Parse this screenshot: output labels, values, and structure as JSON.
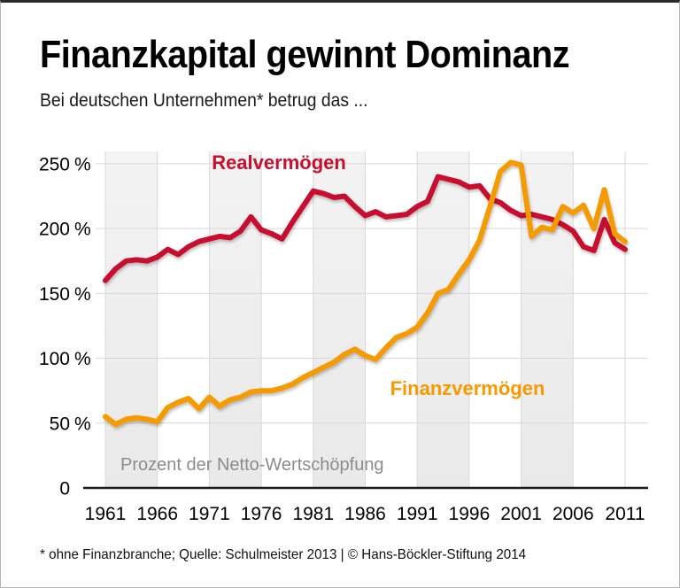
{
  "header": {
    "title": "Finanzkapital gewinnt Dominanz",
    "subtitle": "Bei deutschen Unternehmen* betrug das ..."
  },
  "footer": {
    "note": "* ohne Finanzbranche; Quelle: Schulmeister 2013 | © Hans-Böckler-Stiftung 2014"
  },
  "chart_data": {
    "type": "line",
    "unit_label": "Prozent der Netto-Wertschöpfung",
    "x": [
      1961,
      1962,
      1963,
      1964,
      1965,
      1966,
      1967,
      1968,
      1969,
      1970,
      1971,
      1972,
      1973,
      1974,
      1975,
      1976,
      1977,
      1978,
      1979,
      1980,
      1981,
      1982,
      1983,
      1984,
      1985,
      1986,
      1987,
      1988,
      1989,
      1990,
      1991,
      1992,
      1993,
      1994,
      1995,
      1996,
      1997,
      1998,
      1999,
      2000,
      2001,
      2002,
      2003,
      2004,
      2005,
      2006,
      2007,
      2008,
      2009,
      2010,
      2011
    ],
    "series": [
      {
        "name": "Realvermögen",
        "color": "#c8102e",
        "values": [
          160,
          169,
          175,
          176,
          175,
          178,
          184,
          180,
          186,
          190,
          192,
          194,
          193,
          198,
          209,
          199,
          196,
          192,
          205,
          217,
          229,
          227,
          224,
          225,
          217,
          210,
          213,
          209,
          210,
          211,
          217,
          221,
          240,
          238,
          236,
          232,
          233,
          223,
          220,
          214,
          210,
          211,
          209,
          207,
          203,
          198,
          186,
          183,
          207,
          189,
          184
        ]
      },
      {
        "name": "Finanzvermögen",
        "color": "#f59a00",
        "values": [
          55,
          49,
          53,
          54,
          53,
          51,
          62,
          66,
          69,
          61,
          70,
          63,
          68,
          70,
          74,
          75,
          75,
          77,
          80,
          85,
          89,
          93,
          97,
          103,
          107,
          102,
          99,
          108,
          116,
          119,
          124,
          135,
          150,
          153,
          165,
          176,
          191,
          217,
          244,
          251,
          249,
          194,
          201,
          199,
          217,
          212,
          218,
          200,
          230,
          196,
          190
        ]
      }
    ],
    "x_ticks": [
      1961,
      1966,
      1971,
      1976,
      1981,
      1986,
      1991,
      1996,
      2001,
      2006,
      2011
    ],
    "y_ticks": [
      {
        "value": 0,
        "label": "0"
      },
      {
        "value": 50,
        "label": "50 %"
      },
      {
        "value": 100,
        "label": "100 %"
      },
      {
        "value": 150,
        "label": "150 %"
      },
      {
        "value": 200,
        "label": "200 %"
      },
      {
        "value": 250,
        "label": "250 %"
      }
    ],
    "xlim": [
      1961,
      2011
    ],
    "ylim": [
      0,
      260
    ],
    "grid": true,
    "legend_position": "inline-labels",
    "stripe_bands": [
      [
        1961,
        1966
      ],
      [
        1971,
        1976
      ],
      [
        1981,
        1986
      ],
      [
        1991,
        1996
      ],
      [
        2001,
        2006
      ]
    ],
    "colors": {
      "band_top": "#f3f3f3",
      "band_bottom": "#e9e9e9",
      "gridline": "#d9d9d9",
      "axis": "#1a1a1a",
      "unit_label_text": "#8c8c8c",
      "tick_text": "#000000"
    }
  }
}
